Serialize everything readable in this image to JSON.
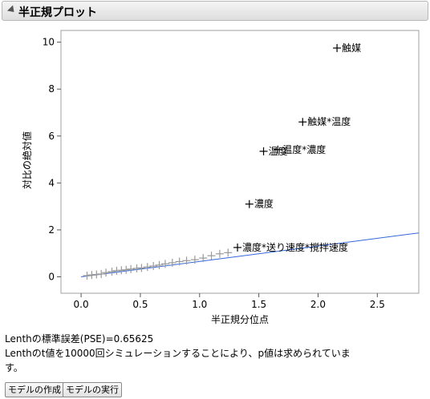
{
  "header": {
    "title": "半正規プロット"
  },
  "chart_data": {
    "type": "scatter",
    "xlabel": "半正規分位点",
    "ylabel": "対比の絶対値",
    "xlim": [
      -0.17,
      2.85
    ],
    "ylim": [
      -0.7,
      10.5
    ],
    "xticks": [
      "0.0",
      "0.5",
      "1.0",
      "1.5",
      "2.0",
      "2.5"
    ],
    "yticks": [
      "0",
      "2",
      "4",
      "6",
      "8",
      "10"
    ],
    "labeled_points": [
      {
        "x": 2.16,
        "y": 9.75,
        "label": "触媒"
      },
      {
        "x": 1.87,
        "y": 6.6,
        "label": "触媒*温度"
      },
      {
        "x": 1.54,
        "y": 5.35,
        "label": "温度"
      },
      {
        "x": 1.66,
        "y": 5.42,
        "label": "温度*濃度"
      },
      {
        "x": 1.42,
        "y": 3.1,
        "label": "濃度"
      },
      {
        "x": 1.32,
        "y": 1.25,
        "label": "濃度*送り速度*撹拌速度"
      }
    ],
    "unlabeled_points": [
      [
        0.05,
        0.05
      ],
      [
        0.09,
        0.08
      ],
      [
        0.13,
        0.1
      ],
      [
        0.17,
        0.12
      ],
      [
        0.21,
        0.18
      ],
      [
        0.26,
        0.22
      ],
      [
        0.3,
        0.26
      ],
      [
        0.34,
        0.28
      ],
      [
        0.38,
        0.3
      ],
      [
        0.42,
        0.33
      ],
      [
        0.47,
        0.36
      ],
      [
        0.51,
        0.38
      ],
      [
        0.56,
        0.42
      ],
      [
        0.61,
        0.46
      ],
      [
        0.66,
        0.5
      ],
      [
        0.71,
        0.55
      ],
      [
        0.77,
        0.6
      ],
      [
        0.83,
        0.65
      ],
      [
        0.89,
        0.69
      ],
      [
        0.96,
        0.73
      ],
      [
        1.03,
        0.8
      ],
      [
        1.1,
        0.9
      ],
      [
        1.17,
        0.98
      ],
      [
        1.24,
        1.03
      ]
    ],
    "reference_line": {
      "x": [
        0,
        2.85
      ],
      "y": [
        0,
        1.87
      ]
    }
  },
  "info": {
    "line1": "Lenthの標準誤差(PSE)=0.65625",
    "line2": "Lenthのt値を10000回シミュレーションすることにより、p値は求められていま",
    "line3": "す。"
  },
  "buttons": {
    "make_model": "モデルの作成",
    "run_model": "モデルの実行"
  }
}
